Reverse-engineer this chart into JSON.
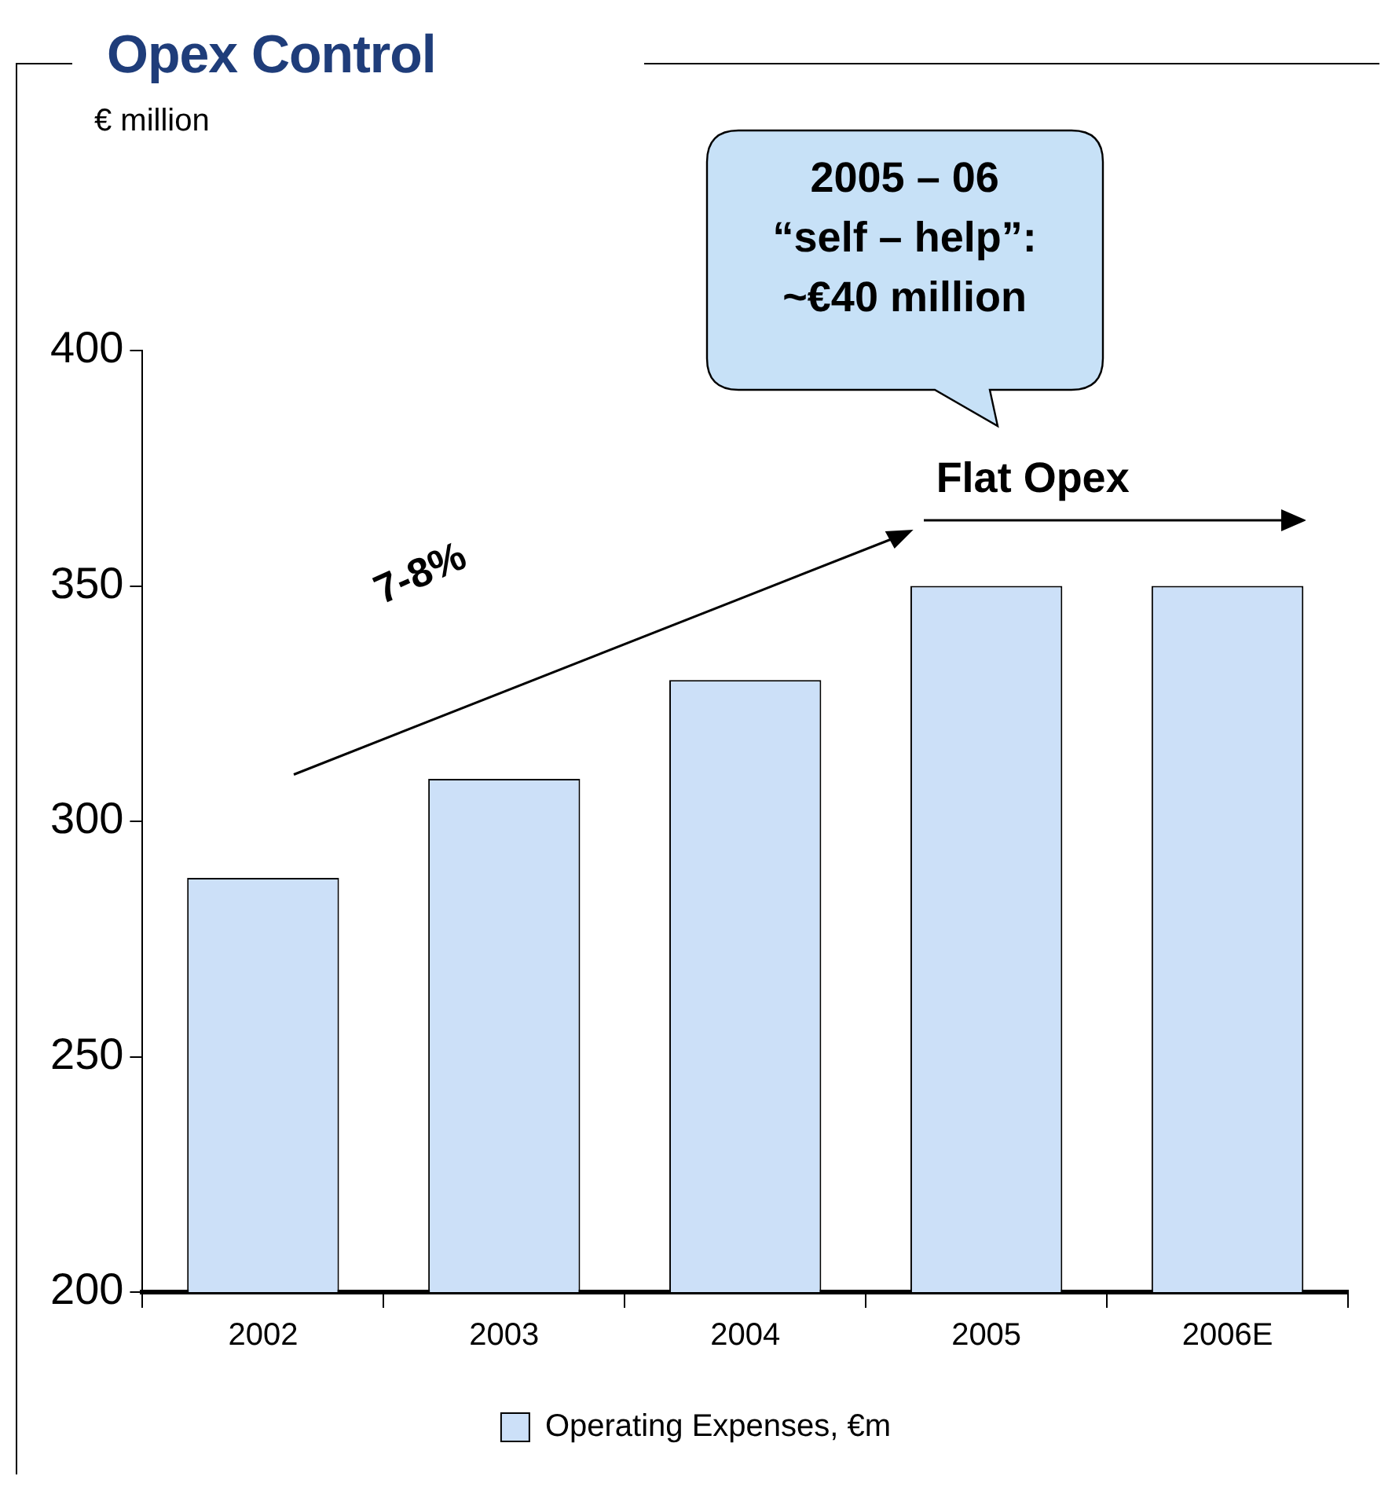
{
  "chart_data": {
    "type": "bar",
    "title": "Opex Control",
    "subtitle": "€ million",
    "categories": [
      "2002",
      "2003",
      "2004",
      "2005",
      "2006E"
    ],
    "series": [
      {
        "name": "Operating Expenses, €m",
        "color": "#cce0f8",
        "values": [
          288,
          309,
          330,
          350,
          350
        ]
      }
    ],
    "ylim": [
      200,
      400
    ],
    "yticks": [
      200,
      250,
      300,
      350,
      400
    ],
    "grid": false,
    "legend": "bottom",
    "annotations": [
      "7-8%",
      "Flat Opex",
      "2005 – 06\n“self – help”:\n~€40 million"
    ]
  }
}
